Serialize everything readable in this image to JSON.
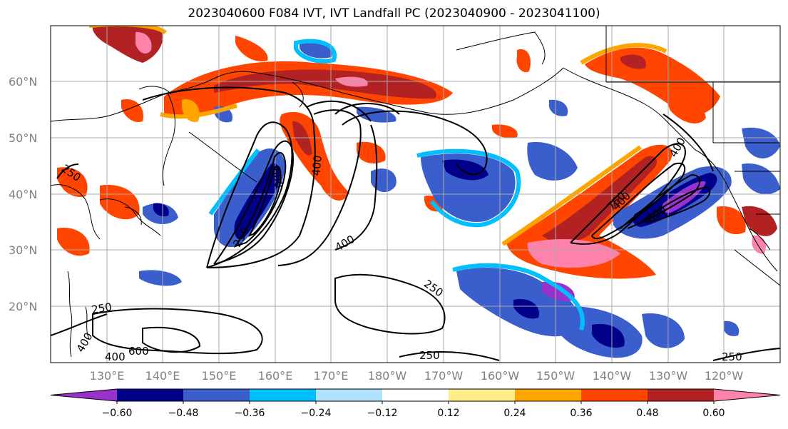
{
  "title": "2023040600 F084 IVT, IVT Landfall PC (2023040900 - 2023041100)",
  "lat_ticks": [
    "60°N",
    "50°N",
    "40°N",
    "30°N",
    "20°N"
  ],
  "lon_ticks": [
    "130°E",
    "140°E",
    "150°E",
    "160°E",
    "170°E",
    "180°W",
    "170°W",
    "160°W",
    "150°W",
    "140°W",
    "130°W",
    "120°W"
  ],
  "colorbar": {
    "colors": [
      "#9932cc",
      "#00008b",
      "#3a5fcd",
      "#00bfff",
      "#b0e2ff",
      "#ffffff",
      "#ffec8b",
      "#ffa500",
      "#ff4500",
      "#b22222",
      "#ff82ab"
    ],
    "tick_labels": [
      "−0.60",
      "−0.48",
      "−0.36",
      "−0.24",
      "−0.12",
      "0.12",
      "0.24",
      "0.36",
      "0.48",
      "0.60"
    ]
  },
  "contour_labels": [
    "250",
    "400",
    "600",
    "400",
    "250",
    "400",
    "250",
    "400",
    "250",
    "400",
    "600",
    "250",
    "250",
    "750",
    "600",
    "400",
    "250"
  ]
}
